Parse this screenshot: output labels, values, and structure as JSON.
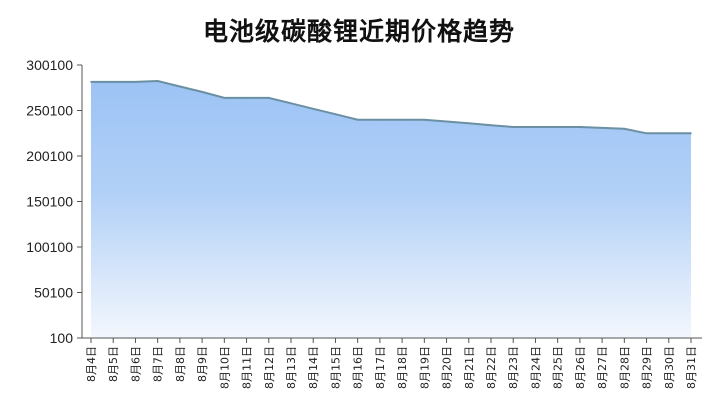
{
  "chart_data": {
    "type": "area",
    "title": "电池级碳酸锂近期价格趋势",
    "xlabel": "",
    "ylabel": "",
    "categories": [
      "8月4日",
      "8月5日",
      "8月6日",
      "8月7日",
      "8月8日",
      "8月9日",
      "8月10日",
      "8月11日",
      "8月12日",
      "8月13日",
      "8月14日",
      "8月15日",
      "8月16日",
      "8月17日",
      "8月18日",
      "8月19日",
      "8月20日",
      "8月21日",
      "8月22日",
      "8月23日",
      "8月24日",
      "8月25日",
      "8月26日",
      "8月27日",
      "8月28日",
      "8月29日",
      "8月30日",
      "8月31日"
    ],
    "values": [
      281500,
      281500,
      281500,
      282500,
      276500,
      270500,
      264000,
      264000,
      264000,
      258000,
      252000,
      246000,
      240000,
      240000,
      240000,
      240000,
      238000,
      236000,
      234000,
      232000,
      232000,
      232000,
      232000,
      231000,
      230000,
      225000,
      225000,
      225000
    ],
    "ylim": [
      100,
      300100
    ],
    "yticks": [
      100,
      50100,
      100100,
      150100,
      200100,
      250100,
      300100
    ],
    "grid": false,
    "colors": {
      "line": "#6b8fa3",
      "fill_top": "#9cc3f5",
      "fill_mid": "#b3d1f7",
      "fill_bottom": "#f3f7fd"
    }
  }
}
